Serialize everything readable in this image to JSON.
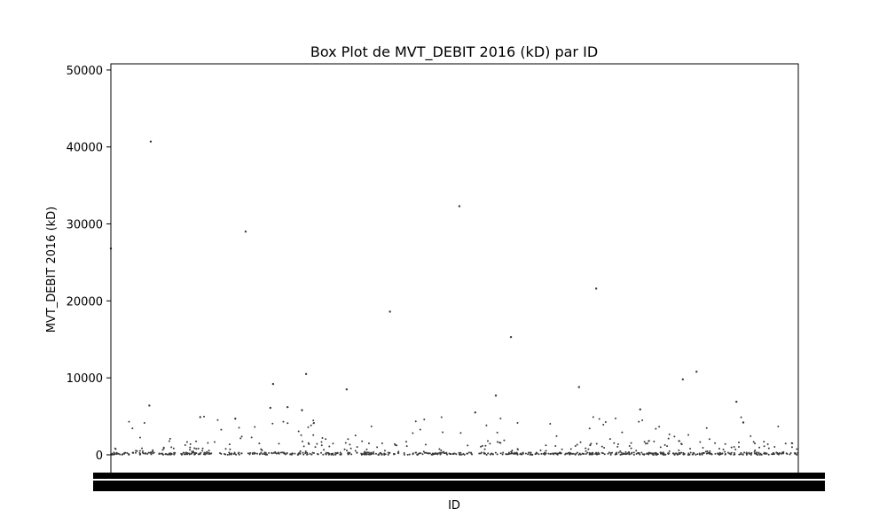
{
  "chart_data": {
    "type": "box",
    "title": "Box Plot de MVT_DEBIT 2016 (kD) par ID",
    "xlabel": "ID",
    "ylabel": "MVT_DEBIT 2016 (kD)",
    "ylim": [
      -3000,
      50800
    ],
    "yticks": [
      0,
      10000,
      20000,
      30000,
      40000,
      50000
    ],
    "y_tick_labels": [
      "0",
      "10000",
      "20000",
      "30000",
      "40000",
      "50000"
    ],
    "grid": false,
    "legend": "none",
    "x_tick_labels_note": "dense, overlapping category tick labels rendered as a solid black band",
    "colors": {
      "marker": "#3a3a3a",
      "axis": "#000000",
      "band": "#000000"
    },
    "notable_outliers": [
      {
        "x_fraction": 0.0,
        "value": 26800
      },
      {
        "x_fraction": 0.058,
        "value": 40700
      },
      {
        "x_fraction": 0.196,
        "value": 29000
      },
      {
        "x_fraction": 0.406,
        "value": 18600
      },
      {
        "x_fraction": 0.507,
        "value": 32300
      },
      {
        "x_fraction": 0.582,
        "value": 15300
      },
      {
        "x_fraction": 0.706,
        "value": 21600
      },
      {
        "x_fraction": 0.284,
        "value": 10500
      },
      {
        "x_fraction": 0.832,
        "value": 9800
      },
      {
        "x_fraction": 0.852,
        "value": 10800
      },
      {
        "x_fraction": 0.236,
        "value": 9200
      },
      {
        "x_fraction": 0.681,
        "value": 8800
      },
      {
        "x_fraction": 0.343,
        "value": 8500
      },
      {
        "x_fraction": 0.056,
        "value": 6400
      },
      {
        "x_fraction": 0.232,
        "value": 6100
      },
      {
        "x_fraction": 0.257,
        "value": 6200
      },
      {
        "x_fraction": 0.278,
        "value": 5800
      },
      {
        "x_fraction": 0.77,
        "value": 5900
      },
      {
        "x_fraction": 0.53,
        "value": 5500
      },
      {
        "x_fraction": 0.13,
        "value": 4900
      },
      {
        "x_fraction": 0.181,
        "value": 4700
      },
      {
        "x_fraction": 0.92,
        "value": 4200
      },
      {
        "x_fraction": 0.91,
        "value": 6900
      },
      {
        "x_fraction": 0.56,
        "value": 7700
      }
    ]
  }
}
